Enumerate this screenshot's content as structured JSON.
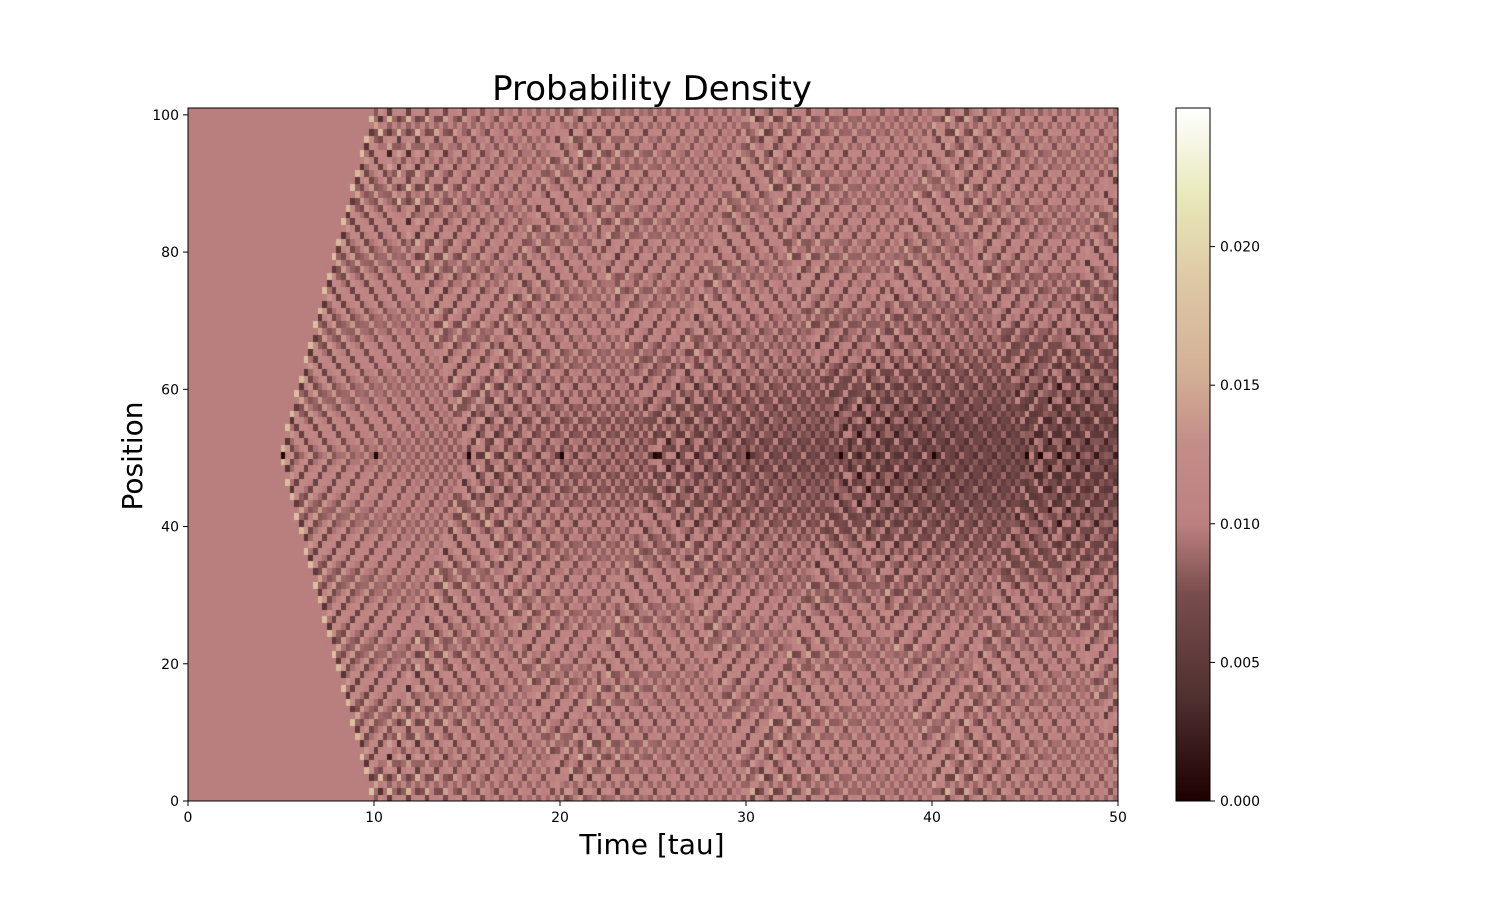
{
  "chart_data": {
    "type": "heatmap",
    "title": "Probability Density",
    "xlabel": "Time [tau]",
    "ylabel": "Position",
    "xlim": [
      0,
      50
    ],
    "ylim": [
      0,
      101
    ],
    "x_ticks": [
      0,
      10,
      20,
      30,
      40,
      50
    ],
    "y_ticks": [
      0,
      20,
      40,
      60,
      80,
      100
    ],
    "colorbar": {
      "min": 0.0,
      "max": 0.025,
      "ticks": [
        "0.000",
        "0.005",
        "0.010",
        "0.015",
        "0.020"
      ],
      "colormap": "pink"
    },
    "grid": false,
    "legend": "none",
    "pattern": {
      "uniform_value": 0.0099,
      "center_position": 50.5,
      "front_start_time": 5,
      "front_speed": 10,
      "pulse_period": 5,
      "note_values_range": [
        0.0,
        0.025
      ]
    }
  }
}
